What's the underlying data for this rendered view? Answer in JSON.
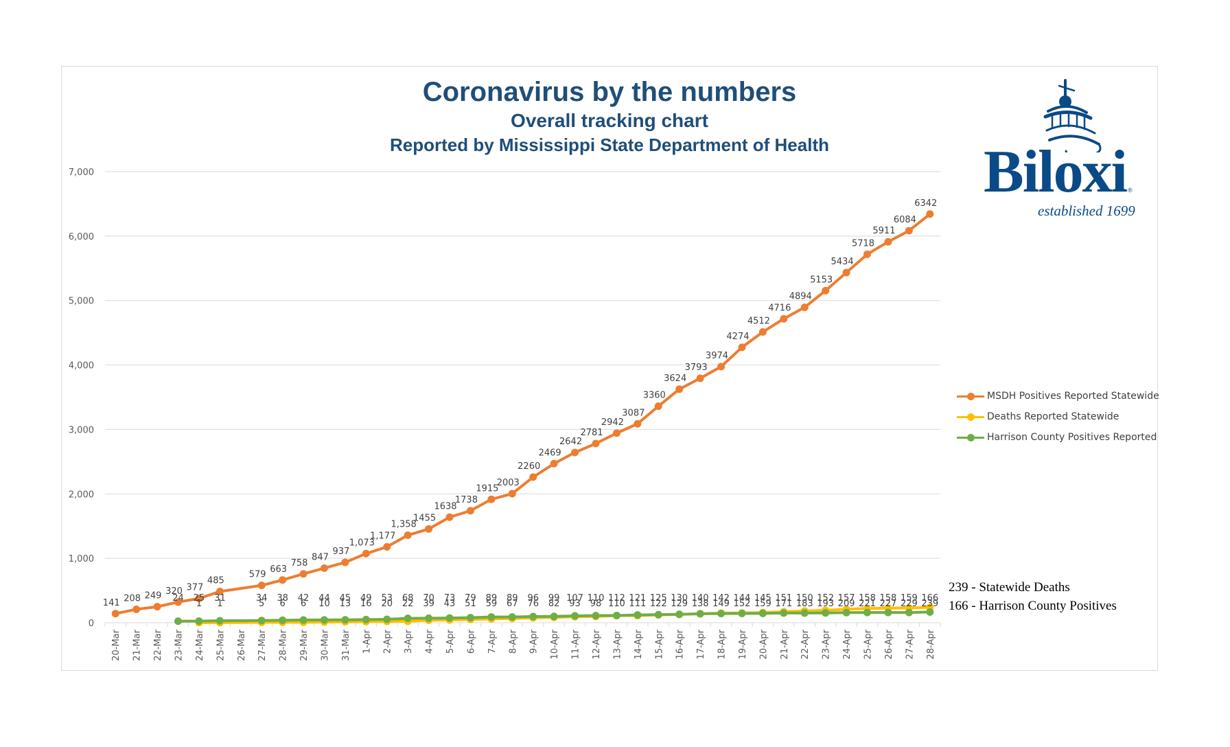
{
  "chart_data": {
    "type": "line",
    "title": "Coronavirus by the numbers",
    "subtitle": "Overall tracking chart",
    "subtitle2": "Reported by Mississippi State Department of Health",
    "xlabel": "",
    "ylabel": "",
    "ylim": [
      0,
      7000
    ],
    "yticks": [
      0,
      1000,
      2000,
      3000,
      4000,
      5000,
      6000,
      7000
    ],
    "ytick_labels": [
      "0",
      "1,000",
      "2,000",
      "3,000",
      "4,000",
      "5,000",
      "6,000",
      "7,000"
    ],
    "grid": true,
    "legend_position": "right",
    "categories": [
      "20-Mar",
      "21-Mar",
      "22-Mar",
      "23-Mar",
      "24-Mar",
      "25-Mar",
      "26-Mar",
      "27-Mar",
      "28-Mar",
      "29-Mar",
      "30-Mar",
      "31-Mar",
      "1-Apr",
      "2-Apr",
      "3-Apr",
      "4-Apr",
      "5-Apr",
      "6-Apr",
      "7-Apr",
      "8-Apr",
      "9-Apr",
      "10-Apr",
      "11-Apr",
      "12-Apr",
      "13-Apr",
      "14-Apr",
      "15-Apr",
      "16-Apr",
      "17-Apr",
      "18-Apr",
      "19-Apr",
      "20-Apr",
      "21-Apr",
      "22-Apr",
      "23-Apr",
      "24-Apr",
      "25-Apr",
      "26-Apr",
      "27-Apr",
      "28-Apr"
    ],
    "series": [
      {
        "name": "MSDH Positives Reported Statewide",
        "color": "#ed7d31",
        "values": [
          141,
          208,
          249,
          320,
          377,
          485,
          null,
          579,
          663,
          758,
          847,
          937,
          1073,
          1177,
          1358,
          1455,
          1638,
          1738,
          1915,
          2003,
          2260,
          2469,
          2642,
          2781,
          2942,
          3087,
          3360,
          3624,
          3793,
          3974,
          4274,
          4512,
          4716,
          4894,
          5153,
          5434,
          5718,
          5911,
          6084,
          6342
        ],
        "labels": [
          "141",
          "208",
          "249",
          "320",
          "377",
          "485",
          "",
          "579",
          "663",
          "758",
          "847",
          "937",
          "1,073",
          "1,177",
          "1,358",
          "1455",
          "1638",
          "1738",
          "1915",
          "2003",
          "2260",
          "2469",
          "2642",
          "2781",
          "2942",
          "3087",
          "3360",
          "3624",
          "3793",
          "3974",
          "4274",
          "4512",
          "4716",
          "4894",
          "5153",
          "5434",
          "5718",
          "5911",
          "6084",
          "6342"
        ]
      },
      {
        "name": "Deaths Reported Statewide",
        "color": "#ffc000",
        "values": [
          null,
          null,
          null,
          null,
          1,
          1,
          null,
          5,
          6,
          6,
          10,
          13,
          16,
          20,
          22,
          39,
          43,
          51,
          59,
          67,
          76,
          82,
          93,
          98,
          110,
          111,
          122,
          129,
          138,
          149,
          152,
          159,
          171,
          183,
          193,
          209,
          221,
          227,
          229,
          239
        ],
        "labels": [
          "",
          "",
          "",
          "",
          "1",
          "1",
          "",
          "5",
          "6",
          "6",
          "10",
          "13",
          "16",
          "20",
          "22",
          "39",
          "43",
          "51",
          "59",
          "67",
          "76",
          "82",
          "93",
          "98",
          "110",
          "111",
          "122",
          "129",
          "138",
          "149",
          "152",
          "159",
          "171",
          "183",
          "193",
          "209",
          "221",
          "227",
          "229",
          "239"
        ]
      },
      {
        "name": "Harrison County Positives Reported",
        "color": "#70ad47",
        "values": [
          null,
          null,
          null,
          24,
          25,
          31,
          null,
          34,
          38,
          42,
          44,
          45,
          49,
          53,
          68,
          70,
          73,
          79,
          89,
          89,
          96,
          99,
          107,
          110,
          112,
          121,
          125,
          130,
          140,
          142,
          144,
          145,
          151,
          150,
          152,
          157,
          158,
          158,
          159,
          166
        ],
        "labels": [
          "",
          "",
          "",
          "24",
          "25",
          "31",
          "",
          "34",
          "38",
          "42",
          "44",
          "45",
          "49",
          "53",
          "68",
          "70",
          "73",
          "79",
          "89",
          "89",
          "96",
          "99",
          "107",
          "110",
          "112",
          "121",
          "125",
          "130",
          "140",
          "142",
          "144",
          "145",
          "151",
          "150",
          "152",
          "157",
          "158",
          "158",
          "159",
          "166"
        ]
      }
    ],
    "annotations": [
      "239 - Statewide Deaths",
      "166 - Harrison County Positives"
    ]
  },
  "logo": {
    "name": "Biloxi",
    "tagline": "established 1699",
    "registered": "®"
  }
}
